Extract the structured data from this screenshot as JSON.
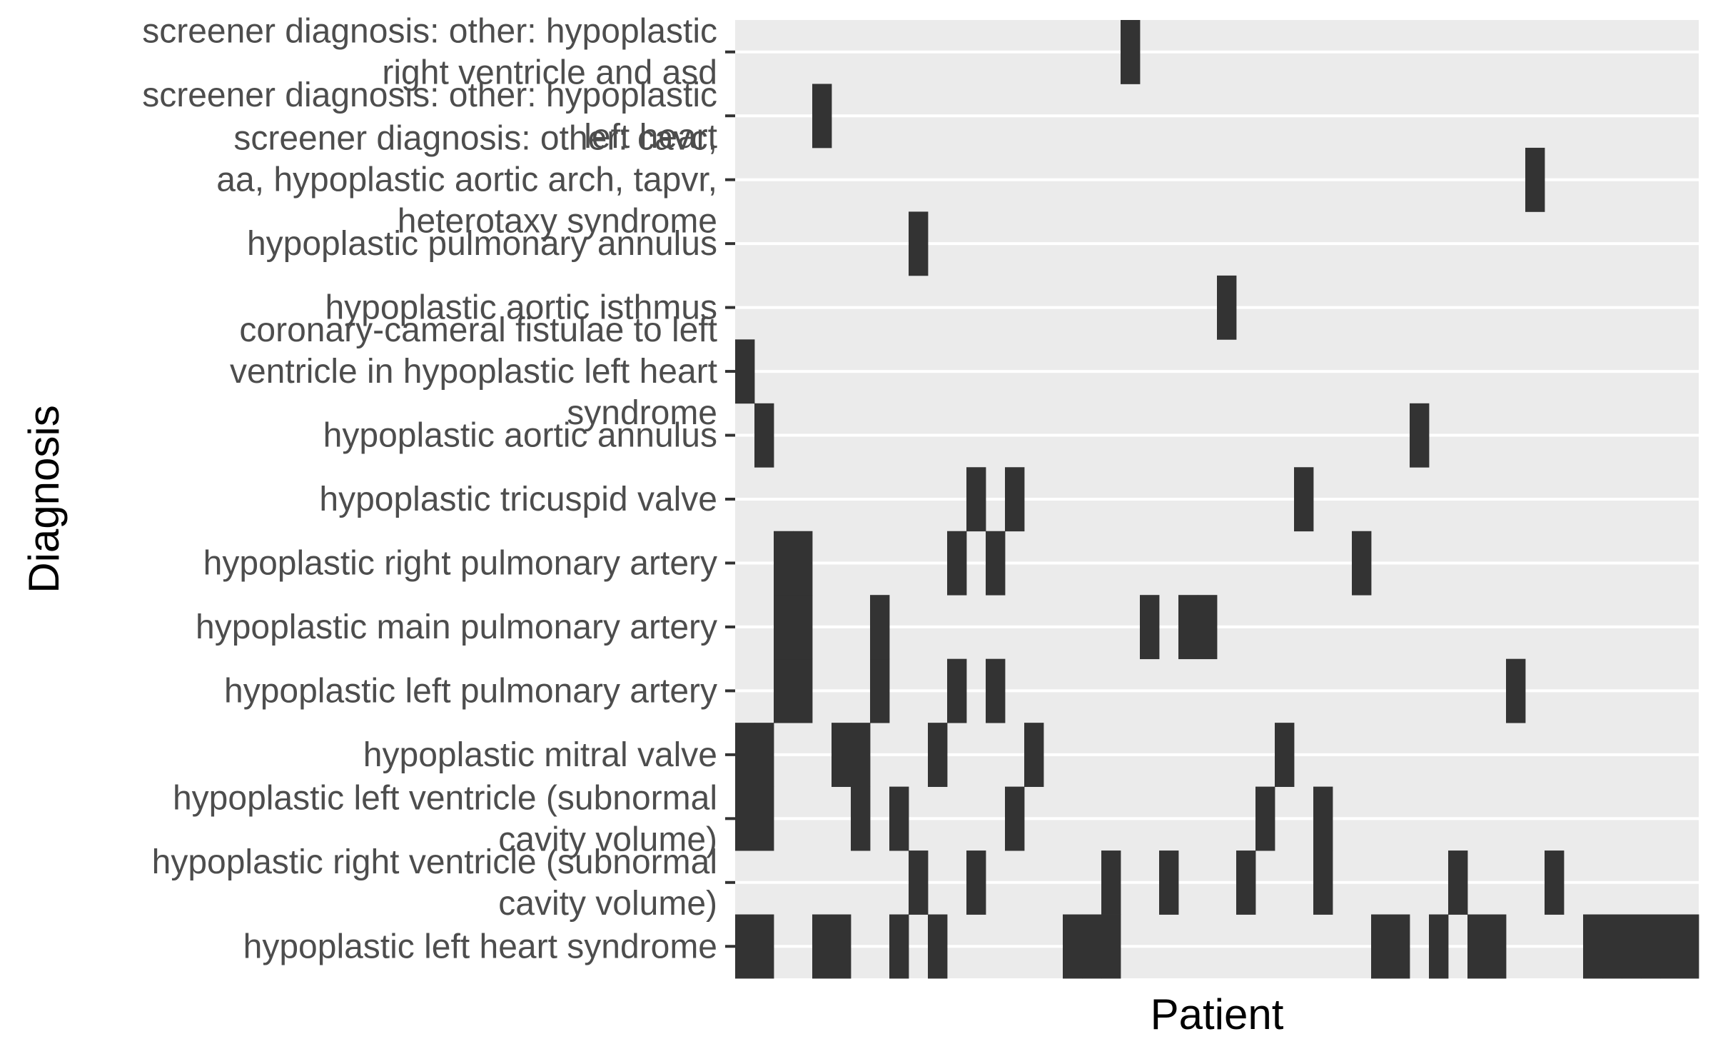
{
  "chart_data": {
    "type": "heatmap",
    "title": "",
    "xlabel": "Patient",
    "ylabel": "Diagnosis",
    "n_patients": 50,
    "panel_background": "#ebebeb",
    "gridline_color": "#ffffff",
    "cell_color": "#333333",
    "grid": true,
    "legend": "none",
    "rows": [
      {
        "label": "hypoplastic left heart syndrome",
        "patients": [
          1,
          2,
          5,
          6,
          9,
          11,
          18,
          19,
          20,
          34,
          35,
          37,
          39,
          40,
          45,
          46,
          47,
          48,
          49,
          50
        ]
      },
      {
        "label": "hypoplastic right ventricle (subnormal cavity volume)",
        "patients": [
          10,
          13,
          20,
          23,
          27,
          31,
          38,
          43
        ]
      },
      {
        "label": "hypoplastic left ventricle (subnormal cavity volume)",
        "patients": [
          1,
          2,
          7,
          9,
          15,
          28,
          31
        ]
      },
      {
        "label": "hypoplastic mitral valve",
        "patients": [
          1,
          2,
          6,
          7,
          11,
          16,
          29
        ]
      },
      {
        "label": "hypoplastic left pulmonary artery",
        "patients": [
          3,
          4,
          8,
          12,
          14,
          41
        ]
      },
      {
        "label": "hypoplastic main pulmonary artery",
        "patients": [
          3,
          4,
          8,
          22,
          24,
          25
        ]
      },
      {
        "label": "hypoplastic right pulmonary artery",
        "patients": [
          3,
          4,
          12,
          14,
          33
        ]
      },
      {
        "label": "hypoplastic tricuspid valve",
        "patients": [
          13,
          15,
          30
        ]
      },
      {
        "label": "hypoplastic aortic annulus",
        "patients": [
          2,
          36
        ]
      },
      {
        "label": "coronary-cameral fistulae to left ventricle in hypoplastic left heart syndrome",
        "patients": [
          1
        ]
      },
      {
        "label": "hypoplastic aortic isthmus",
        "patients": [
          26
        ]
      },
      {
        "label": "hypoplastic pulmonary annulus",
        "patients": [
          10
        ]
      },
      {
        "label": "screener diagnosis: other: cavc, aa, hypoplastic aortic arch, tapvr, heterotaxy syndrome",
        "patients": [
          42
        ]
      },
      {
        "label": "screener diagnosis: other: hypoplastic left heart",
        "patients": [
          5
        ]
      },
      {
        "label": "screener diagnosis: other: hypoplastic right ventricle and asd",
        "patients": [
          21
        ]
      }
    ],
    "y_tick_lines": [
      [
        "hypoplastic left heart syndrome"
      ],
      [
        "hypoplastic right ventricle (subnormal",
        "cavity volume)"
      ],
      [
        "hypoplastic left ventricle (subnormal",
        "cavity volume)"
      ],
      [
        "hypoplastic mitral valve"
      ],
      [
        "hypoplastic left pulmonary artery"
      ],
      [
        "hypoplastic main pulmonary artery"
      ],
      [
        "hypoplastic right pulmonary artery"
      ],
      [
        "hypoplastic tricuspid valve"
      ],
      [
        "hypoplastic aortic annulus"
      ],
      [
        "coronary-cameral fistulae to left",
        "ventricle in hypoplastic left heart",
        "syndrome"
      ],
      [
        "hypoplastic aortic isthmus"
      ],
      [
        "hypoplastic pulmonary annulus"
      ],
      [
        "screener diagnosis: other: cavc,",
        "aa, hypoplastic aortic arch, tapvr,",
        "heterotaxy syndrome"
      ],
      [
        "screener diagnosis: other: hypoplastic",
        "left heart"
      ],
      [
        "screener diagnosis: other: hypoplastic",
        "right ventricle and asd"
      ]
    ]
  }
}
